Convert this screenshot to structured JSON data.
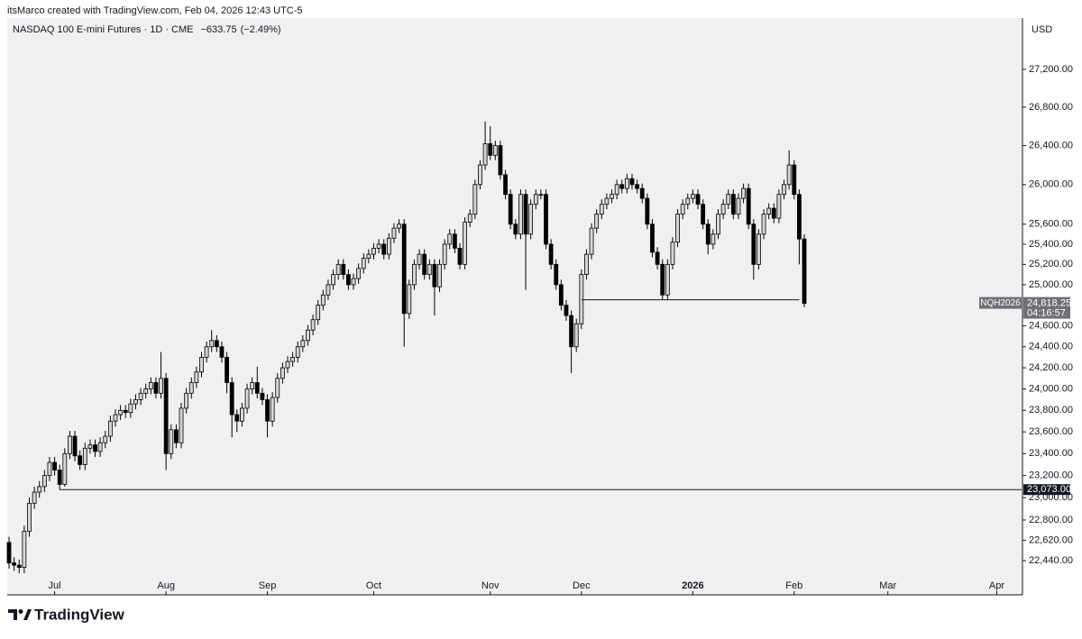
{
  "header": "itsMarco created with TradingView.com, Feb 04, 2026 12:43 UTC-5",
  "brand": "TradingView",
  "chart_data": {
    "type": "candlestick",
    "title": "NASDAQ 100 E-mini Futures · 1D · CME",
    "change": {
      "value": -633.75,
      "label": "−633.75"
    },
    "change_pct": {
      "value": -2.49,
      "label": "(−2.49%)"
    },
    "currency": "USD",
    "log_scale": true,
    "up_color": "#d6d6d6",
    "down_color": "#000000",
    "border_color": "#000000",
    "xlim": [
      -0.36,
      199.9
    ],
    "xticks": [
      {
        "value": 9,
        "label": "Jul"
      },
      {
        "value": 31,
        "label": "Aug"
      },
      {
        "value": 51,
        "label": "Sep"
      },
      {
        "value": 72,
        "label": "Oct"
      },
      {
        "value": 95,
        "label": "Nov"
      },
      {
        "value": 113,
        "label": "Dec"
      },
      {
        "value": 135,
        "label": "2026"
      },
      {
        "value": 155,
        "label": "Feb"
      },
      {
        "value": 173.5,
        "label": "Mar"
      },
      {
        "value": 195,
        "label": "Apr"
      }
    ],
    "ylim": [
      22157,
      27752
    ],
    "yticks": [
      {
        "value": 22440,
        "label": "22,440.00"
      },
      {
        "value": 22620,
        "label": "22,620.00"
      },
      {
        "value": 22800,
        "label": "22,800.00"
      },
      {
        "value": 23000,
        "label": "23,000.00"
      },
      {
        "value": 23200,
        "label": "23,200.00"
      },
      {
        "value": 23400,
        "label": "23,400.00"
      },
      {
        "value": 23600,
        "label": "23,600.00"
      },
      {
        "value": 23800,
        "label": "23,800.00"
      },
      {
        "value": 24000,
        "label": "24,000.00"
      },
      {
        "value": 24200,
        "label": "24,200.00"
      },
      {
        "value": 24400,
        "label": "24,400.00"
      },
      {
        "value": 24600,
        "label": "24,600.00"
      },
      {
        "value": 25000,
        "label": "25,000.00"
      },
      {
        "value": 25200,
        "label": "25,200.00"
      },
      {
        "value": 25400,
        "label": "25,400.00"
      },
      {
        "value": 25600,
        "label": "25,600.00"
      },
      {
        "value": 26000,
        "label": "26,000.00"
      },
      {
        "value": 26400,
        "label": "26,400.00"
      },
      {
        "value": 26800,
        "label": "26,800.00"
      },
      {
        "value": 27200,
        "label": "27,200.00"
      }
    ],
    "open": [
      22600,
      22420,
      22400,
      22380,
      22700,
      22950,
      23050,
      23100,
      23200,
      23320,
      23250,
      23120,
      23400,
      23560,
      23380,
      23300,
      23450,
      23480,
      23420,
      23500,
      23560,
      23700,
      23760,
      23800,
      23780,
      23860,
      23900,
      23960,
      24000,
      24060,
      23960,
      24100,
      23400,
      23620,
      23500,
      23820,
      23960,
      24060,
      24160,
      24300,
      24400,
      24460,
      24400,
      24300,
      24060,
      23760,
      23700,
      23820,
      24000,
      24060,
      23960,
      23900,
      23700,
      23920,
      24100,
      24200,
      24260,
      24300,
      24400,
      24460,
      24560,
      24660,
      24800,
      24900,
      25000,
      25100,
      25200,
      25100,
      25000,
      25060,
      25160,
      25260,
      25300,
      25360,
      25400,
      25300,
      25460,
      25560,
      25600,
      24720,
      25000,
      25200,
      25300,
      25100,
      25200,
      24980,
      25200,
      25400,
      25500,
      25360,
      25200,
      25620,
      25700,
      26000,
      26200,
      26420,
      26300,
      26400,
      26100,
      25900,
      25600,
      25500,
      25900,
      25500,
      25800,
      25900,
      25900,
      25400,
      25200,
      25000,
      24800,
      24700,
      24400,
      24620,
      25100,
      25300,
      25560,
      25700,
      25800,
      25860,
      25900,
      26000,
      25960,
      26060,
      26000,
      25960,
      25860,
      25600,
      25320,
      25200,
      24900,
      25200,
      25420,
      25700,
      25800,
      25860,
      25900,
      25800,
      25600,
      25400,
      25500,
      25700,
      25800,
      25900,
      25700,
      25860,
      25960,
      25600,
      25200,
      25500,
      25700,
      25760,
      25660,
      25900,
      26000,
      26200,
      25900,
      25452
    ],
    "high": [
      22650,
      22470,
      22450,
      22750,
      23000,
      23100,
      23150,
      23250,
      23370,
      23370,
      23300,
      23450,
      23610,
      23610,
      23430,
      23500,
      23530,
      23530,
      23550,
      23610,
      23750,
      23810,
      23850,
      23850,
      23910,
      23950,
      24010,
      24050,
      24110,
      24110,
      24350,
      24150,
      23670,
      23670,
      23870,
      24010,
      24110,
      24210,
      24350,
      24450,
      24560,
      24510,
      24450,
      24350,
      24110,
      23810,
      23870,
      24050,
      24110,
      24210,
      24010,
      23950,
      23970,
      24150,
      24250,
      24310,
      24350,
      24450,
      24510,
      24610,
      24710,
      24850,
      24950,
      25050,
      25150,
      25250,
      25250,
      25150,
      25110,
      25210,
      25310,
      25350,
      25410,
      25450,
      25450,
      25510,
      25610,
      25650,
      25650,
      25050,
      25250,
      25350,
      25350,
      25250,
      25250,
      25250,
      25450,
      25550,
      25550,
      25410,
      25670,
      25750,
      26050,
      26250,
      26650,
      26600,
      26450,
      26450,
      26150,
      25950,
      25650,
      25950,
      25950,
      25850,
      25950,
      25950,
      25950,
      25450,
      25250,
      25050,
      24850,
      24750,
      24670,
      25150,
      25350,
      25610,
      25750,
      25850,
      25910,
      25950,
      26050,
      26050,
      26110,
      26110,
      26050,
      26010,
      25910,
      25650,
      25370,
      25250,
      25250,
      25470,
      25750,
      25850,
      25910,
      25950,
      25950,
      25850,
      25650,
      25550,
      25750,
      25850,
      25950,
      25950,
      25910,
      26010,
      26010,
      25650,
      25550,
      25750,
      25810,
      25810,
      25950,
      26050,
      26350,
      26250,
      25950,
      25500
    ],
    "low": [
      22370,
      22350,
      22330,
      22330,
      22650,
      22900,
      23000,
      23050,
      23150,
      23200,
      23073,
      23100,
      23350,
      23330,
      23250,
      23250,
      23400,
      23370,
      23370,
      23450,
      23510,
      23650,
      23710,
      23730,
      23730,
      23810,
      23850,
      23910,
      23950,
      23910,
      23910,
      23250,
      23350,
      23450,
      23450,
      23770,
      23910,
      24010,
      24110,
      24250,
      24350,
      24350,
      24250,
      23960,
      23550,
      23600,
      23650,
      23770,
      23950,
      23910,
      23850,
      23550,
      23650,
      23870,
      24050,
      24150,
      24210,
      24250,
      24350,
      24410,
      24510,
      24610,
      24750,
      24850,
      24950,
      25050,
      25050,
      24950,
      24950,
      25010,
      25110,
      25210,
      25250,
      25310,
      25250,
      25250,
      25410,
      25510,
      24400,
      24670,
      24950,
      25150,
      25050,
      25050,
      24700,
      24930,
      25150,
      25350,
      25310,
      25150,
      25150,
      25570,
      25650,
      25950,
      26150,
      26250,
      26250,
      26050,
      25850,
      25550,
      25450,
      25450,
      24950,
      25450,
      25750,
      25850,
      25350,
      25150,
      24950,
      24750,
      24650,
      24150,
      24350,
      24570,
      25050,
      25250,
      25510,
      25650,
      25750,
      25810,
      25850,
      25910,
      25910,
      25950,
      25910,
      25810,
      25550,
      25270,
      25150,
      24850,
      24850,
      25150,
      25370,
      25650,
      25750,
      25810,
      25750,
      25550,
      25300,
      25350,
      25450,
      25650,
      25750,
      25650,
      25650,
      25810,
      25550,
      25050,
      25150,
      25450,
      25650,
      25610,
      25610,
      25850,
      25950,
      25850,
      25200,
      24780
    ],
    "close": [
      22420,
      22400,
      22380,
      22700,
      22950,
      23050,
      23100,
      23200,
      23320,
      23250,
      23120,
      23400,
      23560,
      23380,
      23300,
      23450,
      23480,
      23420,
      23500,
      23560,
      23700,
      23760,
      23800,
      23780,
      23860,
      23900,
      23960,
      24000,
      24060,
      23960,
      24100,
      23400,
      23620,
      23500,
      23820,
      23960,
      24060,
      24160,
      24300,
      24400,
      24460,
      24400,
      24300,
      24060,
      23760,
      23700,
      23820,
      24000,
      24060,
      23960,
      23900,
      23700,
      23920,
      24100,
      24200,
      24260,
      24300,
      24400,
      24460,
      24560,
      24660,
      24800,
      24900,
      25000,
      25100,
      25200,
      25100,
      25000,
      25060,
      25160,
      25260,
      25300,
      25360,
      25400,
      25300,
      25460,
      25560,
      25600,
      24720,
      25000,
      25200,
      25300,
      25100,
      25200,
      24980,
      25200,
      25400,
      25500,
      25360,
      25200,
      25620,
      25700,
      26000,
      26200,
      26420,
      26300,
      26400,
      26100,
      25900,
      25600,
      25500,
      25900,
      25500,
      25800,
      25900,
      25900,
      25400,
      25200,
      25000,
      24800,
      24700,
      24400,
      24620,
      25100,
      25300,
      25560,
      25700,
      25800,
      25860,
      25900,
      26000,
      25960,
      26060,
      26000,
      25960,
      25860,
      25600,
      25320,
      25200,
      24900,
      25200,
      25420,
      25700,
      25800,
      25860,
      25900,
      25800,
      25600,
      25400,
      25500,
      25700,
      25800,
      25900,
      25700,
      25860,
      25960,
      25600,
      25200,
      25500,
      25700,
      25760,
      25660,
      25900,
      26000,
      26200,
      25900,
      25452,
      24818.25
    ],
    "levels": [
      {
        "value": 23073,
        "label": "23,073.00",
        "x": [
          10,
          199.9
        ]
      },
      {
        "value": 24853,
        "x": [
          113,
          156
        ]
      }
    ],
    "last_price": {
      "value": 24818.25,
      "label": "24,818.25",
      "symbol": "NQH2026",
      "countdown": "04:16:57"
    }
  }
}
